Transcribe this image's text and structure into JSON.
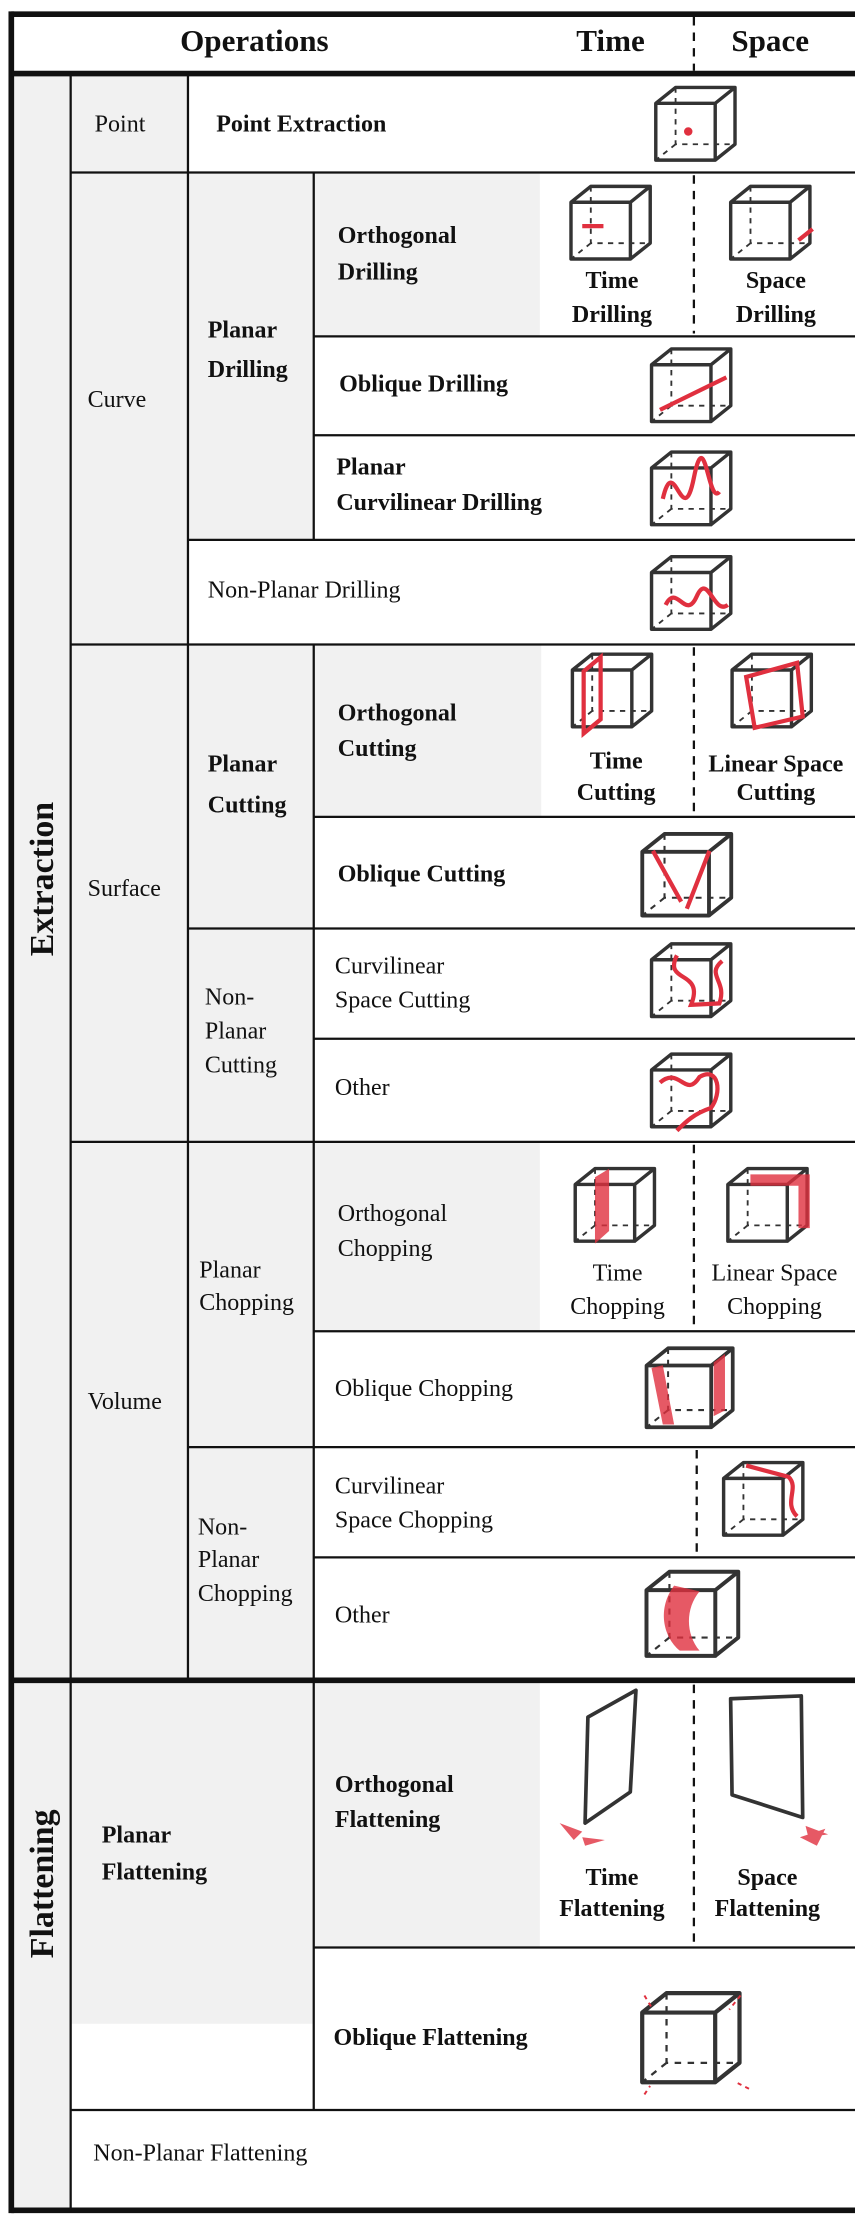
{
  "header": {
    "operations": "Operations",
    "time": "Time",
    "space": "Space"
  },
  "extraction": {
    "label": "Extraction",
    "point": {
      "label": "Point",
      "operation": "Point Extraction"
    },
    "curve": {
      "label": "Curve",
      "planar_drilling": {
        "label": [
          "Planar",
          "Drilling"
        ],
        "orthogonal": {
          "label": [
            "Orthogonal",
            "Drilling"
          ],
          "time": [
            "Time",
            "Drilling"
          ],
          "space": [
            "Space",
            "Drilling"
          ]
        },
        "oblique": "Oblique Drilling",
        "curvilinear": [
          "Planar",
          "Curvilinear Drilling"
        ]
      },
      "non_planar": "Non-Planar Drilling"
    },
    "surface": {
      "label": "Surface",
      "planar_cutting": {
        "label": [
          "Planar",
          "Cutting"
        ],
        "orthogonal": {
          "label": [
            "Orthogonal",
            "Cutting"
          ],
          "time": [
            "Time",
            "Cutting"
          ],
          "space": [
            "Linear Space",
            "Cutting"
          ]
        },
        "oblique": "Oblique Cutting"
      },
      "non_planar_cutting": {
        "label": [
          "Non-",
          "Planar",
          "Cutting"
        ],
        "curvilinear": [
          "Curvilinear",
          "Space Cutting"
        ],
        "other": "Other"
      }
    },
    "volume": {
      "label": "Volume",
      "planar_chopping": {
        "label": [
          "Planar",
          "Chopping"
        ],
        "orthogonal": {
          "label": [
            "Orthogonal",
            "Chopping"
          ],
          "time": [
            "Time",
            "Chopping"
          ],
          "space": [
            "Linear Space",
            "Chopping"
          ]
        },
        "oblique": "Oblique Chopping"
      },
      "non_planar_chopping": {
        "label": [
          "Non-",
          "Planar",
          "Chopping"
        ],
        "curvilinear": [
          "Curvilinear",
          "Space Chopping"
        ],
        "other": "Other"
      }
    }
  },
  "flattening": {
    "label": "Flattening",
    "planar": {
      "label": [
        "Planar",
        "Flattening"
      ],
      "orthogonal": {
        "label": [
          "Orthogonal",
          "Flattening"
        ],
        "time": [
          "Time",
          "Flattening"
        ],
        "space": [
          "Space",
          "Flattening"
        ]
      },
      "oblique": "Oblique Flattening"
    },
    "non_planar": "Non-Planar Flattening"
  }
}
